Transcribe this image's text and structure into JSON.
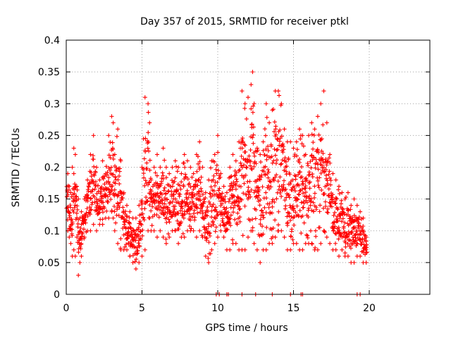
{
  "chart_data": {
    "type": "scatter",
    "title": "Day 357 of 2015, SRMTID for receiver ptkl",
    "xlabel": "GPS time / hours",
    "ylabel": "SRMTID / TECUs",
    "xlim": [
      0,
      24
    ],
    "ylim": [
      0,
      0.4
    ],
    "x_ticks": [
      0,
      5,
      10,
      15,
      20
    ],
    "x_tick_labels": [
      "0",
      "5",
      "10",
      "15",
      "20"
    ],
    "y_ticks": [
      0,
      0.05,
      0.1,
      0.15,
      0.2,
      0.25,
      0.3,
      0.35,
      0.4
    ],
    "y_tick_labels": [
      "0",
      "0.05",
      "0.1",
      "0.15",
      "0.2",
      "0.25",
      "0.3",
      "0.35",
      "0.4"
    ],
    "grid": true,
    "marker": "+",
    "point_color": "#ff0000",
    "series": [
      {
        "name": "SRMTID",
        "note": "Dense scatter of ~2000 samples every ~0.01 h from 0 to 19.9 h; values estimated from gridlines. Listed points are representative envelope samples.",
        "x": [
          0.1,
          0.2,
          0.3,
          0.4,
          0.5,
          0.6,
          0.7,
          0.8,
          0.9,
          1.0,
          1.2,
          1.4,
          1.6,
          1.8,
          2.0,
          2.2,
          2.4,
          2.6,
          2.8,
          3.0,
          3.1,
          3.2,
          3.4,
          3.6,
          3.8,
          4.0,
          4.2,
          4.4,
          4.6,
          4.8,
          5.0,
          5.2,
          5.4,
          5.5,
          5.6,
          5.8,
          6.0,
          6.2,
          6.4,
          6.6,
          6.8,
          7.0,
          7.2,
          7.4,
          7.6,
          7.8,
          8.0,
          8.2,
          8.4,
          8.6,
          8.8,
          9.0,
          9.2,
          9.4,
          9.6,
          9.8,
          10.0,
          10.2,
          10.4,
          10.6,
          10.8,
          11.0,
          11.2,
          11.4,
          11.6,
          11.8,
          12.0,
          12.2,
          12.3,
          12.4,
          12.6,
          12.8,
          13.0,
          13.2,
          13.4,
          13.6,
          13.8,
          14.0,
          14.2,
          14.4,
          14.6,
          14.8,
          15.0,
          15.2,
          15.4,
          15.6,
          15.8,
          16.0,
          16.2,
          16.4,
          16.6,
          16.8,
          17.0,
          17.2,
          17.4,
          17.6,
          17.8,
          18.0,
          18.2,
          18.4,
          18.6,
          18.8,
          19.0,
          19.2,
          19.4,
          19.6,
          19.8
        ],
        "y_high": [
          0.19,
          0.17,
          0.16,
          0.2,
          0.23,
          0.22,
          0.17,
          0.15,
          0.12,
          0.13,
          0.15,
          0.18,
          0.22,
          0.25,
          0.2,
          0.18,
          0.21,
          0.19,
          0.25,
          0.28,
          0.27,
          0.22,
          0.26,
          0.21,
          0.16,
          0.14,
          0.13,
          0.12,
          0.12,
          0.14,
          0.2,
          0.31,
          0.3,
          0.27,
          0.18,
          0.2,
          0.22,
          0.2,
          0.23,
          0.2,
          0.19,
          0.2,
          0.21,
          0.2,
          0.19,
          0.22,
          0.21,
          0.2,
          0.19,
          0.22,
          0.24,
          0.2,
          0.16,
          0.18,
          0.21,
          0.22,
          0.25,
          0.19,
          0.17,
          0.16,
          0.2,
          0.22,
          0.21,
          0.24,
          0.32,
          0.3,
          0.31,
          0.33,
          0.35,
          0.3,
          0.23,
          0.22,
          0.24,
          0.3,
          0.27,
          0.29,
          0.32,
          0.32,
          0.3,
          0.26,
          0.24,
          0.24,
          0.23,
          0.24,
          0.26,
          0.25,
          0.22,
          0.25,
          0.27,
          0.26,
          0.28,
          0.3,
          0.32,
          0.27,
          0.22,
          0.19,
          0.18,
          0.17,
          0.16,
          0.15,
          0.16,
          0.14,
          0.15,
          0.14,
          0.13,
          0.12,
          0.09
        ],
        "y_low": [
          0.1,
          0.09,
          0.08,
          0.06,
          0.07,
          0.06,
          0.09,
          0.03,
          0.05,
          0.06,
          0.09,
          0.1,
          0.1,
          0.11,
          0.1,
          0.11,
          0.11,
          0.12,
          0.12,
          0.13,
          0.12,
          0.1,
          0.08,
          0.07,
          0.07,
          0.07,
          0.06,
          0.05,
          0.04,
          0.05,
          0.06,
          0.07,
          0.1,
          0.12,
          0.1,
          0.1,
          0.09,
          0.1,
          0.09,
          0.08,
          0.09,
          0.1,
          0.1,
          0.08,
          0.09,
          0.09,
          0.1,
          0.1,
          0.1,
          0.09,
          0.1,
          0.09,
          0.06,
          0.05,
          0.07,
          0.08,
          0.09,
          0.1,
          0.09,
          0.07,
          0.07,
          0.08,
          0.08,
          0.07,
          0.07,
          0.07,
          0.09,
          0.1,
          0.1,
          0.08,
          0.07,
          0.05,
          0.07,
          0.07,
          0.08,
          0.08,
          0.09,
          0.1,
          0.1,
          0.09,
          0.07,
          0.07,
          0.08,
          0.08,
          0.07,
          0.07,
          0.08,
          0.08,
          0.08,
          0.07,
          0.07,
          0.08,
          0.1,
          0.09,
          0.08,
          0.07,
          0.07,
          0.06,
          0.07,
          0.06,
          0.06,
          0.05,
          0.05,
          0.06,
          0.06,
          0.05,
          0.05
        ],
        "zero_points_x": [
          9.9,
          10.1,
          10.6,
          10.7,
          11.6,
          12.5,
          13.6,
          14.8,
          15.5,
          15.6,
          19.2,
          19.4
        ]
      }
    ]
  }
}
